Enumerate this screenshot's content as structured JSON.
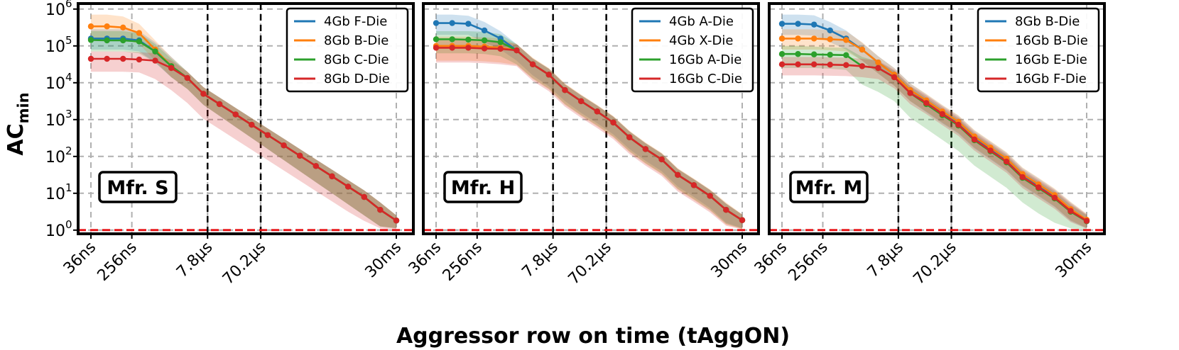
{
  "figure": {
    "ylabel": "AC",
    "ylabel_sub": "min",
    "xlabel": "Aggressor row on time (tAggON)"
  },
  "chart_data": [
    {
      "type": "line",
      "title": "Mfr. S",
      "xlabel": "Aggressor row on time (tAggON)",
      "ylabel": "AC_min",
      "yscale": "log",
      "ylim_exp": [
        -0.1,
        6.15
      ],
      "y_ticks": [
        {
          "base": "10",
          "exp": "0"
        },
        {
          "base": "10",
          "exp": "1"
        },
        {
          "base": "10",
          "exp": "2"
        },
        {
          "base": "10",
          "exp": "3"
        },
        {
          "base": "10",
          "exp": "4"
        },
        {
          "base": "10",
          "exp": "5"
        },
        {
          "base": "10",
          "exp": "6"
        }
      ],
      "x_ticks": [
        "36ns",
        "256ns",
        "7.8µs",
        "70.2µs",
        "30ms"
      ],
      "vlines_at_tick": [
        2,
        3
      ],
      "threshold_y": 1,
      "legend_position": "top-right",
      "series": [
        {
          "name": "4Gb F-Die",
          "color": "#1f77b4",
          "log_values": [
            5.2,
            5.2,
            5.2,
            5.15,
            4.85,
            4.45,
            4.13,
            3.7,
            3.42,
            3.14,
            2.86,
            2.58,
            2.3,
            2.02,
            1.74,
            1.46,
            1.18,
            0.9,
            0.55,
            0.26
          ],
          "band_lo": [
            4.9,
            4.9,
            4.9,
            4.85,
            4.55,
            4.15,
            3.83,
            3.4,
            3.1,
            2.8,
            2.5,
            2.2,
            1.9,
            1.6,
            1.3,
            1.0,
            0.7,
            0.4,
            0.1,
            0.05
          ],
          "band_hi": [
            5.45,
            5.45,
            5.45,
            5.4,
            5.1,
            4.7,
            4.3,
            3.88,
            3.6,
            3.32,
            3.04,
            2.76,
            2.48,
            2.2,
            1.92,
            1.64,
            1.36,
            1.08,
            0.75,
            0.4
          ]
        },
        {
          "name": "8Gb B-Die",
          "color": "#ff7f0e",
          "log_values": [
            5.53,
            5.53,
            5.5,
            5.35,
            4.9,
            4.45,
            4.13,
            3.7,
            3.42,
            3.14,
            2.86,
            2.58,
            2.3,
            2.02,
            1.74,
            1.46,
            1.18,
            0.9,
            0.55,
            0.26
          ],
          "band_lo": [
            5.2,
            5.2,
            5.2,
            5.05,
            4.6,
            4.15,
            3.83,
            3.4,
            3.1,
            2.8,
            2.5,
            2.2,
            1.9,
            1.6,
            1.3,
            1.0,
            0.7,
            0.4,
            0.1,
            0.05
          ],
          "band_hi": [
            5.85,
            5.85,
            5.8,
            5.6,
            5.15,
            4.7,
            4.3,
            3.88,
            3.6,
            3.32,
            3.04,
            2.76,
            2.48,
            2.2,
            1.92,
            1.64,
            1.36,
            1.08,
            0.75,
            0.4
          ]
        },
        {
          "name": "8Gb C-Die",
          "color": "#2ca02c",
          "log_values": [
            5.16,
            5.15,
            5.15,
            5.12,
            4.85,
            4.45,
            4.13,
            3.7,
            3.42,
            3.14,
            2.86,
            2.58,
            2.3,
            2.02,
            1.74,
            1.46,
            1.18,
            0.9,
            0.55,
            0.26
          ],
          "band_lo": [
            4.85,
            4.85,
            4.85,
            4.8,
            4.55,
            4.15,
            3.83,
            3.4,
            3.1,
            2.8,
            2.5,
            2.2,
            1.9,
            1.6,
            1.3,
            1.0,
            0.7,
            0.4,
            0.1,
            0.05
          ],
          "band_hi": [
            5.4,
            5.4,
            5.4,
            5.35,
            5.05,
            4.65,
            4.3,
            3.88,
            3.6,
            3.32,
            3.04,
            2.76,
            2.48,
            2.2,
            1.92,
            1.64,
            1.36,
            1.08,
            0.75,
            0.4
          ]
        },
        {
          "name": "8Gb D-Die",
          "color": "#d62728",
          "log_values": [
            4.65,
            4.65,
            4.65,
            4.63,
            4.6,
            4.4,
            4.13,
            3.7,
            3.42,
            3.14,
            2.86,
            2.58,
            2.3,
            2.02,
            1.74,
            1.46,
            1.18,
            0.9,
            0.55,
            0.26
          ],
          "band_lo": [
            4.3,
            4.3,
            4.3,
            4.28,
            4.1,
            3.8,
            3.45,
            3.02,
            2.74,
            2.46,
            2.18,
            1.9,
            1.62,
            1.34,
            1.06,
            0.78,
            0.5,
            0.25,
            0.05,
            0.02
          ],
          "band_hi": [
            4.85,
            4.85,
            4.85,
            4.83,
            4.8,
            4.6,
            4.3,
            3.88,
            3.6,
            3.32,
            3.04,
            2.76,
            2.48,
            2.2,
            1.92,
            1.64,
            1.36,
            1.08,
            0.75,
            0.4
          ]
        }
      ]
    },
    {
      "type": "line",
      "title": "Mfr. H",
      "xlabel": "Aggressor row on time (tAggON)",
      "ylabel": "AC_min",
      "yscale": "log",
      "ylim_exp": [
        -0.1,
        6.15
      ],
      "y_ticks": [],
      "x_ticks": [
        "36ns",
        "256ns",
        "7.8µs",
        "70.2µs",
        "30ms"
      ],
      "vlines_at_tick": [
        2,
        3
      ],
      "threshold_y": 1,
      "legend_position": "top-right",
      "series": [
        {
          "name": "4Gb A-Die",
          "color": "#1f77b4",
          "log_values": [
            5.62,
            5.62,
            5.6,
            5.42,
            5.2,
            4.88,
            4.5,
            4.22,
            3.8,
            3.5,
            3.22,
            2.92,
            2.52,
            2.2,
            1.92,
            1.5,
            1.22,
            0.93,
            0.55,
            0.27
          ],
          "band_lo": [
            5.3,
            5.3,
            5.3,
            5.1,
            4.9,
            4.6,
            4.2,
            3.9,
            3.5,
            3.18,
            2.9,
            2.6,
            2.2,
            1.88,
            1.6,
            1.18,
            0.9,
            0.6,
            0.2,
            0.05
          ],
          "band_hi": [
            5.85,
            5.85,
            5.82,
            5.65,
            5.4,
            5.05,
            4.65,
            4.38,
            3.95,
            3.66,
            3.38,
            3.08,
            2.68,
            2.36,
            2.08,
            1.66,
            1.38,
            1.09,
            0.72,
            0.42
          ]
        },
        {
          "name": "4Gb X-Die",
          "color": "#ff7f0e",
          "log_values": [
            5.0,
            5.0,
            5.0,
            4.98,
            4.95,
            4.88,
            4.5,
            4.22,
            3.8,
            3.5,
            3.22,
            2.92,
            2.52,
            2.2,
            1.92,
            1.5,
            1.22,
            0.93,
            0.55,
            0.27
          ],
          "band_lo": [
            4.6,
            4.6,
            4.6,
            4.58,
            4.55,
            4.48,
            4.1,
            3.82,
            3.4,
            3.1,
            2.82,
            2.52,
            2.12,
            1.8,
            1.52,
            1.1,
            0.82,
            0.53,
            0.15,
            0.03
          ],
          "band_hi": [
            5.25,
            5.25,
            5.25,
            5.23,
            5.2,
            5.05,
            4.68,
            4.4,
            3.98,
            3.68,
            3.4,
            3.1,
            2.7,
            2.38,
            2.1,
            1.68,
            1.4,
            1.11,
            0.75,
            0.43
          ]
        },
        {
          "name": "16Gb A-Die",
          "color": "#2ca02c",
          "log_values": [
            5.18,
            5.18,
            5.17,
            5.15,
            5.1,
            4.88,
            4.5,
            4.22,
            3.8,
            3.5,
            3.22,
            2.92,
            2.52,
            2.2,
            1.92,
            1.5,
            1.22,
            0.93,
            0.55,
            0.27
          ],
          "band_lo": [
            4.8,
            4.8,
            4.8,
            4.78,
            4.72,
            4.5,
            4.12,
            3.84,
            3.42,
            3.12,
            2.84,
            2.54,
            2.14,
            1.82,
            1.54,
            1.12,
            0.84,
            0.55,
            0.17,
            0.04
          ],
          "band_hi": [
            5.4,
            5.4,
            5.4,
            5.38,
            5.32,
            5.05,
            4.66,
            4.38,
            3.96,
            3.66,
            3.38,
            3.08,
            2.68,
            2.36,
            2.08,
            1.66,
            1.38,
            1.09,
            0.72,
            0.42
          ]
        },
        {
          "name": "16Gb C-Die",
          "color": "#d62728",
          "log_values": [
            4.95,
            4.95,
            4.95,
            4.93,
            4.92,
            4.88,
            4.5,
            4.22,
            3.8,
            3.5,
            3.22,
            2.92,
            2.52,
            2.2,
            1.92,
            1.5,
            1.22,
            0.93,
            0.55,
            0.27
          ],
          "band_lo": [
            4.55,
            4.55,
            4.55,
            4.53,
            4.5,
            4.45,
            4.05,
            3.77,
            3.35,
            3.05,
            2.77,
            2.47,
            2.07,
            1.75,
            1.47,
            1.05,
            0.77,
            0.48,
            0.12,
            0.02
          ],
          "band_hi": [
            5.15,
            5.15,
            5.15,
            5.13,
            5.12,
            5.05,
            4.66,
            4.38,
            3.96,
            3.66,
            3.38,
            3.08,
            2.68,
            2.36,
            2.08,
            1.66,
            1.38,
            1.09,
            0.72,
            0.42
          ]
        }
      ]
    },
    {
      "type": "line",
      "title": "Mfr. M",
      "xlabel": "Aggressor row on time (tAggON)",
      "ylabel": "AC_min",
      "yscale": "log",
      "ylim_exp": [
        -0.1,
        6.15
      ],
      "y_ticks": [],
      "x_ticks": [
        "36ns",
        "256ns",
        "7.8µs",
        "70.2µs",
        "30ms"
      ],
      "vlines_at_tick": [
        2,
        3
      ],
      "threshold_y": 1,
      "legend_position": "top-right",
      "series": [
        {
          "name": "8Gb B-Die",
          "color": "#1f77b4",
          "log_values": [
            5.6,
            5.6,
            5.58,
            5.42,
            5.2,
            4.9,
            4.55,
            4.22,
            3.8,
            3.5,
            3.2,
            2.92,
            2.52,
            2.22,
            1.92,
            1.5,
            1.22,
            0.93,
            0.55,
            0.27
          ],
          "band_lo": [
            5.3,
            5.3,
            5.28,
            5.1,
            4.9,
            4.6,
            4.25,
            3.92,
            3.5,
            3.2,
            2.9,
            2.62,
            2.22,
            1.92,
            1.62,
            1.2,
            0.92,
            0.63,
            0.25,
            0.05
          ],
          "band_hi": [
            5.85,
            5.85,
            5.83,
            5.65,
            5.42,
            5.08,
            4.72,
            4.4,
            3.98,
            3.68,
            3.38,
            3.1,
            2.7,
            2.4,
            2.1,
            1.68,
            1.4,
            1.11,
            0.75,
            0.43
          ]
        },
        {
          "name": "16Gb B-Die",
          "color": "#ff7f0e",
          "log_values": [
            5.2,
            5.2,
            5.2,
            5.18,
            5.16,
            4.9,
            4.55,
            4.22,
            3.8,
            3.52,
            3.22,
            2.94,
            2.54,
            2.24,
            1.94,
            1.52,
            1.24,
            0.95,
            0.57,
            0.28
          ],
          "band_lo": [
            4.9,
            4.9,
            4.9,
            4.88,
            4.85,
            4.6,
            4.25,
            3.92,
            3.5,
            3.22,
            2.92,
            2.64,
            2.24,
            1.94,
            1.64,
            1.22,
            0.94,
            0.65,
            0.27,
            0.06
          ],
          "band_hi": [
            5.45,
            5.45,
            5.45,
            5.43,
            5.4,
            5.1,
            4.72,
            4.4,
            3.98,
            3.7,
            3.4,
            3.12,
            2.72,
            2.42,
            2.12,
            1.7,
            1.42,
            1.13,
            0.77,
            0.45
          ]
        },
        {
          "name": "16Gb E-Die",
          "color": "#2ca02c",
          "log_values": [
            4.78,
            4.78,
            4.77,
            4.76,
            4.75,
            4.45,
            4.4,
            4.15,
            3.72,
            3.42,
            3.12,
            2.84,
            2.44,
            2.14,
            1.84,
            1.42,
            1.14,
            0.86,
            0.5,
            0.24
          ],
          "band_lo": [
            4.4,
            4.4,
            4.4,
            4.38,
            4.35,
            3.95,
            3.75,
            3.5,
            3.05,
            2.75,
            2.45,
            2.15,
            1.75,
            1.45,
            1.15,
            0.75,
            0.45,
            0.2,
            0.05,
            0.02
          ],
          "band_hi": [
            5.0,
            5.0,
            4.98,
            4.96,
            4.95,
            4.7,
            4.58,
            4.32,
            3.9,
            3.6,
            3.3,
            3.02,
            2.62,
            2.32,
            2.02,
            1.6,
            1.32,
            1.04,
            0.68,
            0.4
          ]
        },
        {
          "name": "16Gb F-Die",
          "color": "#d62728",
          "log_values": [
            4.5,
            4.5,
            4.5,
            4.49,
            4.48,
            4.45,
            4.4,
            4.15,
            3.72,
            3.45,
            3.15,
            2.86,
            2.46,
            2.16,
            1.86,
            1.44,
            1.16,
            0.88,
            0.52,
            0.25
          ],
          "band_lo": [
            4.2,
            4.2,
            4.2,
            4.19,
            4.18,
            4.15,
            4.1,
            3.85,
            3.42,
            3.15,
            2.85,
            2.56,
            2.16,
            1.86,
            1.56,
            1.14,
            0.86,
            0.58,
            0.22,
            0.04
          ],
          "band_hi": [
            4.7,
            4.7,
            4.7,
            4.69,
            4.68,
            4.65,
            4.6,
            4.35,
            3.92,
            3.65,
            3.35,
            3.06,
            2.66,
            2.36,
            2.06,
            1.64,
            1.36,
            1.08,
            0.72,
            0.42
          ]
        }
      ]
    }
  ]
}
